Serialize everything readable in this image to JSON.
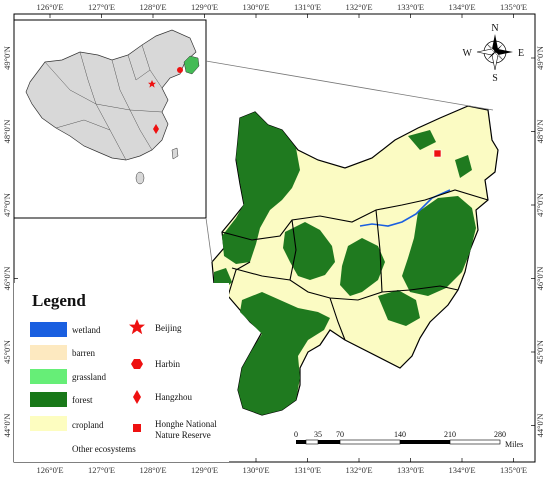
{
  "axes": {
    "longitude_labels": [
      "126°0'E",
      "127°0'E",
      "128°0'E",
      "129°0'E",
      "130°0'E",
      "131°0'E",
      "132°0'E",
      "133°0'E",
      "134°0'E",
      "135°0'E"
    ],
    "latitude_labels_left": [
      "49°0'N",
      "48°0'N",
      "47°0'N",
      "46°0'N",
      "45°0'N",
      "44°0'N"
    ],
    "latitude_labels_right": [
      "49°0'N",
      "48°0'N",
      "47°0'N",
      "46°0'N",
      "45°0'N",
      "44°0'N"
    ]
  },
  "legend": {
    "title": "Legend",
    "land_cover": [
      {
        "label": "wetland",
        "color": "#1a5fe0"
      },
      {
        "label": "barren",
        "color": "#fde9c0"
      },
      {
        "label": "grassland",
        "color": "#66ee77"
      },
      {
        "label": "forest",
        "color": "#187818"
      },
      {
        "label": "cropland",
        "color": "#fdfdc0"
      }
    ],
    "other_label": "Other ecosystems",
    "points": [
      {
        "label": "Beijing",
        "icon": "star-icon"
      },
      {
        "label": "Harbin",
        "icon": "hexagon-icon"
      },
      {
        "label": "Hangzhou",
        "icon": "diamond-icon"
      },
      {
        "label_line1": "Honghe National",
        "label_line2": "Nature Reserve",
        "icon": "square-icon"
      }
    ],
    "marker_color": "#ee1111"
  },
  "compass": {
    "n": "N",
    "s": "S",
    "e": "E",
    "w": "W"
  },
  "scale_bar": {
    "labels": [
      "0",
      "35",
      "70",
      "140",
      "210",
      "280"
    ],
    "unit": "Miles"
  },
  "colors": {
    "forest": "#1f7a1f",
    "cropland": "#fbfbc3",
    "inset_land": "#d8d8d8",
    "highlight": "#44bb55",
    "wetland": "#1a5fe0"
  }
}
